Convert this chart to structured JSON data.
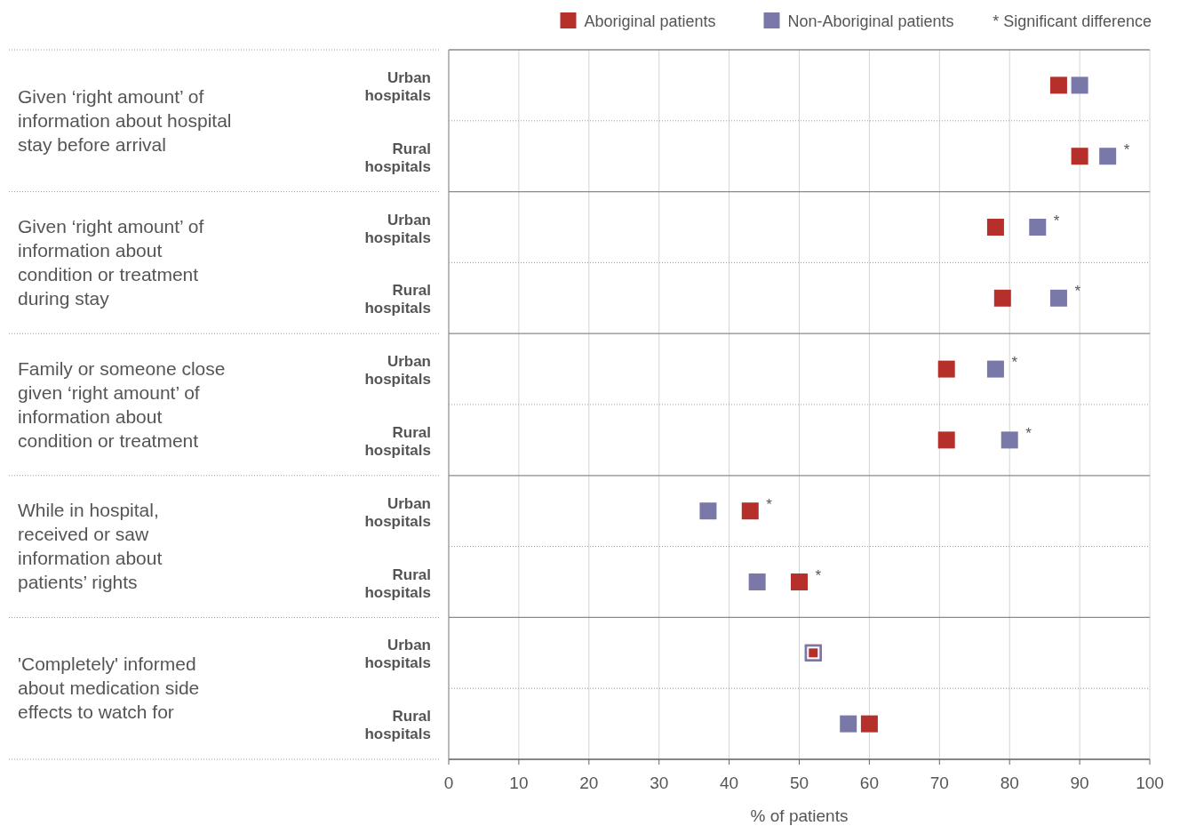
{
  "chart_data": {
    "type": "scatter",
    "orientation": "horizontal",
    "xlabel": "% of patients",
    "categories": [
      "Urban hospitals",
      "Rural hospitals",
      "Urban hospitals",
      "Rural hospitals",
      "Urban hospitals",
      "Rural hospitals",
      "Urban hospitals",
      "Rural hospitals",
      "Urban hospitals",
      "Rural hospitals"
    ],
    "series": [
      {
        "name": "Aboriginal patients",
        "color": "#b5302a",
        "values": [
          87,
          90,
          78,
          79,
          71,
          71,
          43,
          50,
          52,
          60
        ],
        "value_labels": [
          null,
          null,
          null,
          null,
          null,
          null,
          "*",
          "*",
          null,
          null
        ]
      },
      {
        "name": "Non-Aboriginal patients",
        "color": "#7a78a8",
        "values": [
          90,
          94,
          84,
          87,
          78,
          80,
          37,
          44,
          52,
          57
        ],
        "value_labels": [
          null,
          "*",
          "*",
          "*",
          "*",
          "*",
          null,
          null,
          null,
          null
        ]
      }
    ],
    "xlim": [
      0,
      100
    ],
    "xticks": [
      0,
      10,
      20,
      30,
      40,
      50,
      60,
      70,
      80,
      90,
      100
    ],
    "grid": "x",
    "marker": "square",
    "legend": "top",
    "annotations": [
      "* Significant difference",
      "Given ‘right amount’ of information about hospital stay before arrival",
      "Given ‘right amount’ of information about condition or treatment during stay",
      "Family or someone close given ‘right amount’ of information about condition or treatment",
      "While in hospital, received or saw information about patients’ rights",
      "'Completely' informed about medication side effects to watch for"
    ]
  }
}
